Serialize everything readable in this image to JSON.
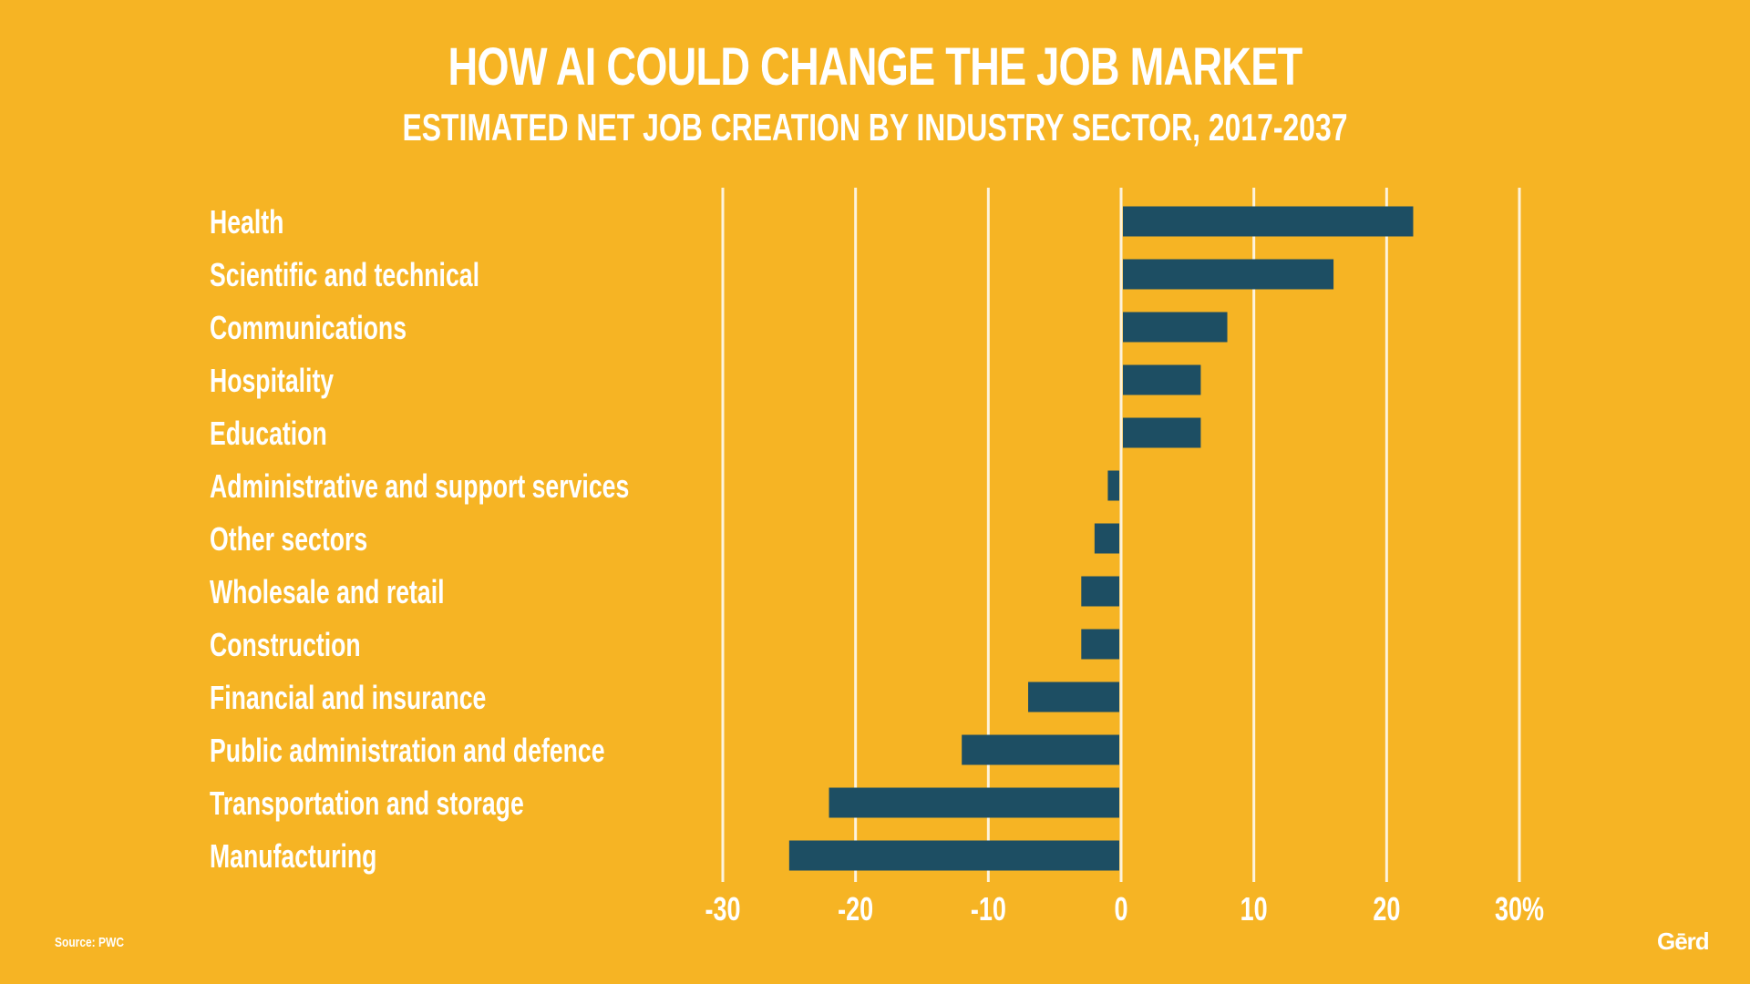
{
  "chart_data": {
    "type": "bar",
    "orientation": "horizontal",
    "title": "HOW AI COULD CHANGE THE JOB MARKET",
    "subtitle": "ESTIMATED NET JOB CREATION BY INDUSTRY SECTOR, 2017-2037",
    "categories": [
      "Health",
      "Scientific and technical",
      "Communications",
      "Hospitality",
      "Education",
      "Administrative and support services",
      "Other sectors",
      "Wholesale and retail",
      "Construction",
      "Financial and insurance",
      "Public administration and defence",
      "Transportation and storage",
      "Manufacturing"
    ],
    "values": [
      22,
      16,
      8,
      6,
      6,
      -1,
      -2,
      -3,
      -3,
      -7,
      -12,
      -22,
      -25
    ],
    "xlim": [
      -30,
      30
    ],
    "x_ticks": [
      -30,
      -20,
      -10,
      0,
      10,
      20,
      30
    ],
    "x_tick_labels": [
      "-30",
      "-20",
      "-10",
      "0",
      "10",
      "20",
      "30%"
    ],
    "grid": true,
    "colors": {
      "background": "#F6B424",
      "bar": "#1D4E63",
      "gridline": "#FDF3DC",
      "text": "#FFFFFF"
    }
  },
  "footer": {
    "source": "Source: PWC"
  },
  "brand": {
    "logo_text": "Gērd"
  }
}
